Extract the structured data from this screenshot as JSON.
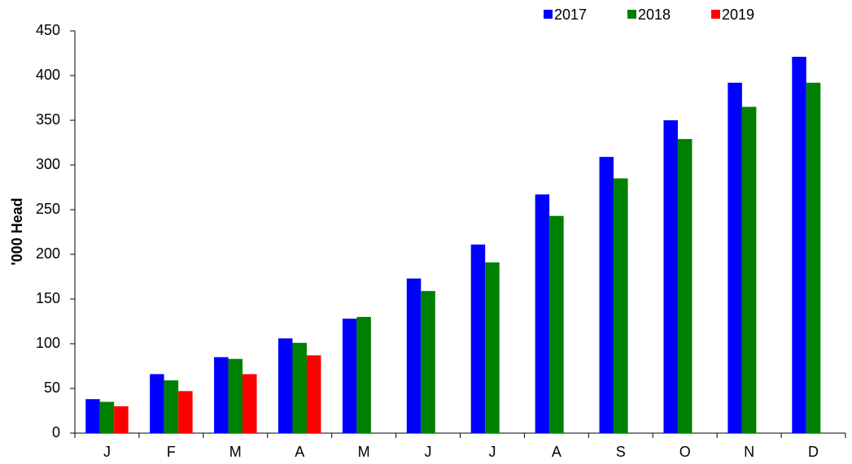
{
  "chart_data": {
    "type": "bar",
    "y_label": "'000 Head",
    "categories": [
      "J",
      "F",
      "M",
      "A",
      "M",
      "J",
      "J",
      "A",
      "S",
      "O",
      "N",
      "D"
    ],
    "series": [
      {
        "name": "2017",
        "color": "#0000ff",
        "values": [
          38,
          66,
          85,
          106,
          128,
          173,
          211,
          267,
          309,
          350,
          392,
          421
        ]
      },
      {
        "name": "2018",
        "color": "#008000",
        "values": [
          35,
          59,
          83,
          101,
          130,
          159,
          191,
          243,
          285,
          329,
          365,
          392
        ]
      },
      {
        "name": "2019",
        "color": "#ff0000",
        "values": [
          30,
          47,
          66,
          87,
          null,
          null,
          null,
          null,
          null,
          null,
          null,
          null
        ]
      }
    ],
    "ylim": [
      0,
      450
    ],
    "yticks": [
      0,
      50,
      100,
      150,
      200,
      250,
      300,
      350,
      400,
      450
    ],
    "grid": false,
    "legend": "top-right"
  }
}
